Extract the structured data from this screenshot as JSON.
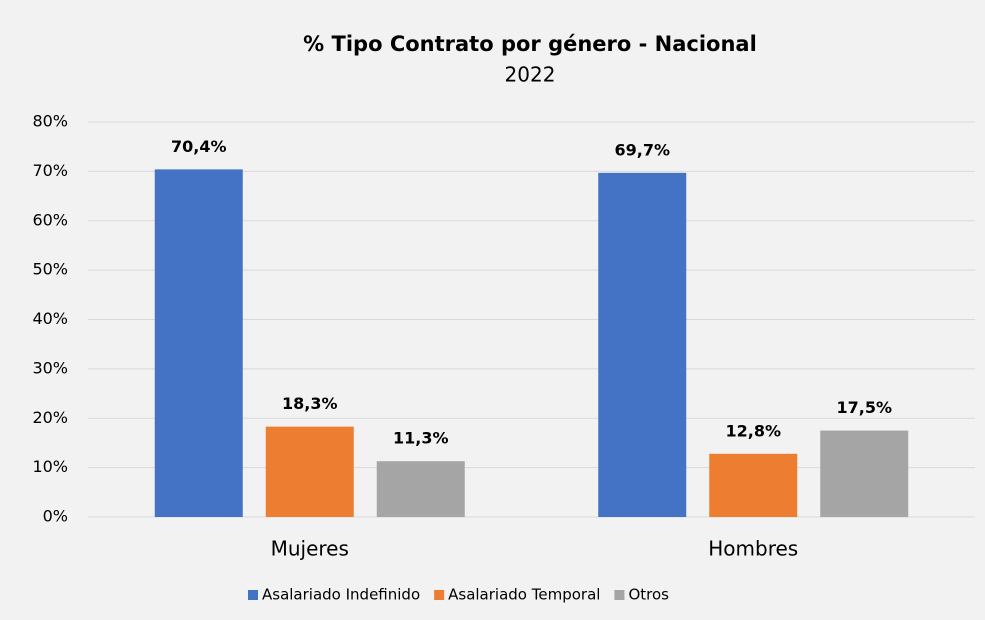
{
  "chart_data": {
    "type": "bar",
    "title": "% Tipo Contrato por género - Nacional",
    "subtitle": "2022",
    "categories": [
      "Mujeres",
      "Hombres"
    ],
    "series": [
      {
        "name": "Asalariado Indefinido",
        "color": "#4472c4",
        "values": [
          70.4,
          69.7
        ],
        "value_labels": [
          "70,4%",
          "69,7%"
        ]
      },
      {
        "name": "Asalariado Temporal",
        "color": "#ed7d31",
        "values": [
          18.3,
          12.8
        ],
        "value_labels": [
          "18,3%",
          "12,8%"
        ]
      },
      {
        "name": "Otros",
        "color": "#a5a5a5",
        "values": [
          11.3,
          17.5
        ],
        "value_labels": [
          "11,3%",
          "17,5%"
        ]
      }
    ],
    "ylim": [
      0,
      80
    ],
    "yticks": [
      {
        "value": 0,
        "label": "0%"
      },
      {
        "value": 10,
        "label": "10%"
      },
      {
        "value": 20,
        "label": "20%"
      },
      {
        "value": 30,
        "label": "30%"
      },
      {
        "value": 40,
        "label": "40%"
      },
      {
        "value": 50,
        "label": "50%"
      },
      {
        "value": 60,
        "label": "60%"
      },
      {
        "value": 70,
        "label": "70%"
      },
      {
        "value": 80,
        "label": "80%"
      }
    ],
    "grid": true,
    "legend": "bottom"
  }
}
